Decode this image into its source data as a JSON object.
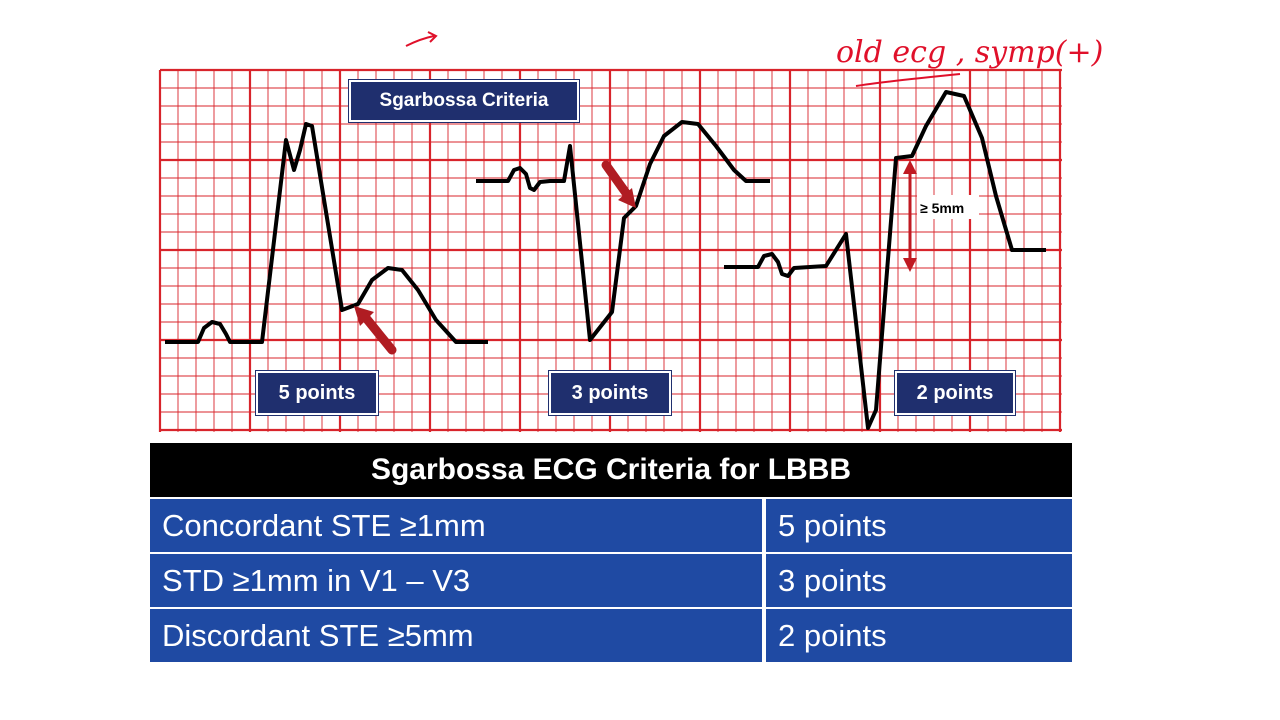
{
  "diagram": {
    "title": "Sgarbossa Criteria",
    "panels": [
      {
        "label": "5 points"
      },
      {
        "label": "3 points"
      },
      {
        "label": "2 points"
      }
    ],
    "measure_label": "≥ 5mm"
  },
  "table": {
    "header": "Sgarbossa ECG Criteria for LBBB",
    "rows": [
      {
        "criterion": "Concordant STE ≥1mm",
        "points": "5 points"
      },
      {
        "criterion": "STD ≥1mm in V1 – V3",
        "points": "3 points"
      },
      {
        "criterion": "Discordant STE ≥5mm",
        "points": "2 points"
      }
    ]
  },
  "handwritten_note": "old ecg , symp(+)",
  "colors": {
    "grid": "#d8242b",
    "trace": "#000000",
    "label_bg": "#1f2f6e",
    "table_header": "#000000",
    "table_row": "#1f4aa3",
    "arrow": "#b01c22",
    "ink": "#e0102a"
  }
}
